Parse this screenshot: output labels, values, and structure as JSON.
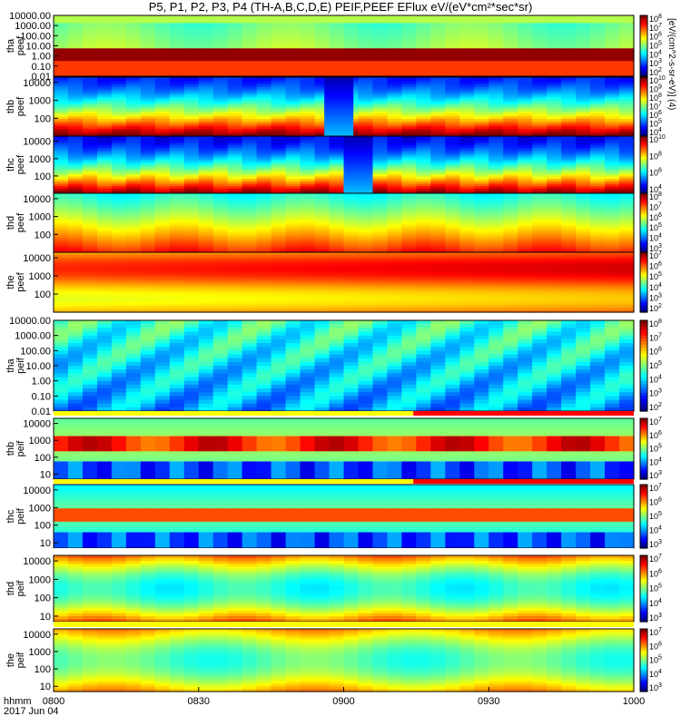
{
  "title": "P5, P1, P2, P3, P4 (TH-A,B,C,D,E) PEIF,PEEF EFlux eV/(eV*cm²*sec*sr)",
  "time_axis": {
    "ticks": [
      "0800",
      "0830",
      "0900",
      "0930",
      "1000"
    ],
    "label_line1": "hhmm",
    "label_line2": "2017 Jun 04"
  },
  "colorbar_unit_label": "[eV/(cm^2-s-sr-eV)] (4)",
  "chart_data": [
    {
      "type": "heatmap",
      "panel": "tha peef",
      "ylabel": [
        "tha",
        "peef"
      ],
      "yticks": [
        "10000.00",
        "1000.00",
        "100.00",
        "10.00",
        "1.00",
        "0.10",
        "0.01"
      ],
      "ylim": [
        0.01,
        10000
      ],
      "yscale": "log",
      "x_range": [
        "0800",
        "1000"
      ],
      "colorbar_ticks": [
        "10^8",
        "10^7",
        "10^6",
        "10^5",
        "10^4",
        "10^3",
        "10^2"
      ],
      "gaps": []
    },
    {
      "type": "heatmap",
      "panel": "thb peef",
      "ylabel": [
        "thb",
        "peef"
      ],
      "yticks": [
        "10000",
        "1000",
        "100"
      ],
      "ylim": [
        10,
        20000
      ],
      "yscale": "log",
      "x_range": [
        "0800",
        "1000"
      ],
      "colorbar_ticks": [
        "10^10",
        "10^9",
        "10^8",
        "10^7",
        "10^6",
        "10^5",
        "10^4"
      ],
      "gaps": [
        {
          "from": "0856",
          "to": "0902"
        }
      ]
    },
    {
      "type": "heatmap",
      "panel": "thc peef",
      "ylabel": [
        "thc",
        "peef"
      ],
      "yticks": [
        "10000",
        "1000",
        "100"
      ],
      "ylim": [
        10,
        20000
      ],
      "yscale": "log",
      "x_range": [
        "0800",
        "1000"
      ],
      "colorbar_ticks": [
        "10^10",
        "10^8",
        "10^6",
        "10^4"
      ],
      "gaps": [
        {
          "from": "0900",
          "to": "0906"
        }
      ]
    },
    {
      "type": "heatmap",
      "panel": "thd peef",
      "ylabel": [
        "thd",
        "peef"
      ],
      "yticks": [
        "10000",
        "1000",
        "100"
      ],
      "ylim": [
        10,
        20000
      ],
      "yscale": "log",
      "x_range": [
        "0800",
        "1000"
      ],
      "colorbar_ticks": [
        "10^8",
        "10^7",
        "10^6",
        "10^5",
        "10^4",
        "10^3"
      ],
      "gaps": []
    },
    {
      "type": "heatmap",
      "panel": "the peef",
      "ylabel": [
        "the",
        "peef"
      ],
      "yticks": [
        "10000",
        "1000",
        "100"
      ],
      "ylim": [
        10,
        20000
      ],
      "yscale": "log",
      "x_range": [
        "0800",
        "1000"
      ],
      "colorbar_ticks": [
        "10^7",
        "10^6",
        "10^5",
        "10^4",
        "10^3",
        "10^2"
      ],
      "gaps": []
    },
    {
      "type": "heatmap",
      "panel": "tha peif",
      "ylabel": [
        "tha",
        "peif"
      ],
      "yticks": [
        "10000.00",
        "1000.00",
        "100.00",
        "10.00",
        "1.00",
        "0.10",
        "0.01"
      ],
      "ylim": [
        0.01,
        10000
      ],
      "yscale": "log",
      "x_range": [
        "0800",
        "1000"
      ],
      "colorbar_ticks": [
        "10^8",
        "10^7",
        "10^6",
        "10^5",
        "10^4",
        "10^3",
        "10^2"
      ],
      "gaps": []
    },
    {
      "type": "heatmap",
      "panel": "thb peif",
      "ylabel": [
        "thb",
        "peif"
      ],
      "yticks": [
        "10000",
        "1000",
        "100",
        "10"
      ],
      "ylim": [
        5,
        20000
      ],
      "yscale": "log",
      "x_range": [
        "0800",
        "1000"
      ],
      "colorbar_ticks": [
        "10^7",
        "10^6",
        "10^5",
        "10^4",
        "10^3"
      ],
      "gaps": []
    },
    {
      "type": "heatmap",
      "panel": "thc peif",
      "ylabel": [
        "thc",
        "peif"
      ],
      "yticks": [
        "10000",
        "1000",
        "100",
        "10"
      ],
      "ylim": [
        5,
        20000
      ],
      "yscale": "log",
      "x_range": [
        "0800",
        "1000"
      ],
      "colorbar_ticks": [
        "10^7",
        "10^6",
        "10^5",
        "10^4",
        "10^3"
      ],
      "gaps": []
    },
    {
      "type": "heatmap",
      "panel": "thd peif",
      "ylabel": [
        "thd",
        "peif"
      ],
      "yticks": [
        "10000",
        "1000",
        "100",
        "10"
      ],
      "ylim": [
        5,
        20000
      ],
      "yscale": "log",
      "x_range": [
        "0800",
        "1000"
      ],
      "colorbar_ticks": [
        "10^7",
        "10^6",
        "10^5",
        "10^4",
        "10^3"
      ],
      "gaps": []
    },
    {
      "type": "heatmap",
      "panel": "the peif",
      "ylabel": [
        "the",
        "peif"
      ],
      "yticks": [
        "10000",
        "1000",
        "100",
        "10"
      ],
      "ylim": [
        5,
        20000
      ],
      "yscale": "log",
      "x_range": [
        "0800",
        "1000"
      ],
      "colorbar_ticks": [
        "10^7",
        "10^6",
        "10^5",
        "10^4",
        "10^3"
      ],
      "gaps": []
    }
  ]
}
